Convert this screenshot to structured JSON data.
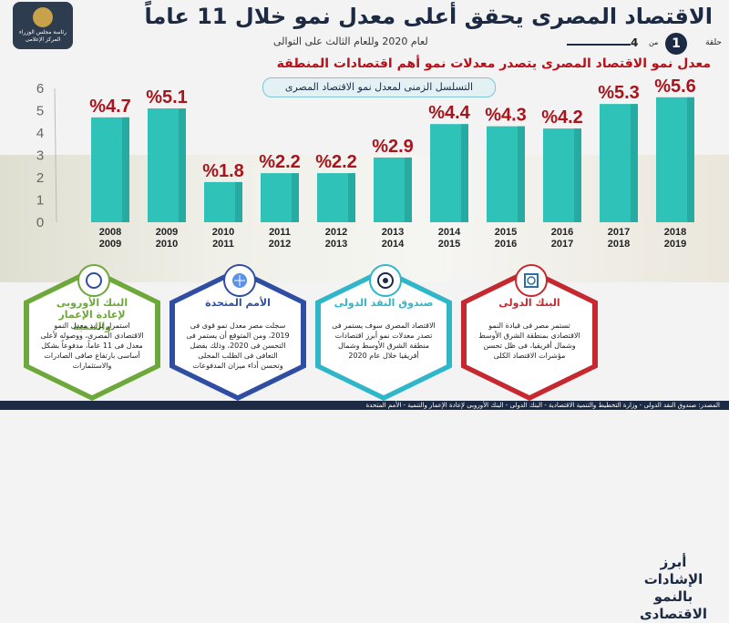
{
  "header": {
    "title": "الاقتصاد المصرى يحقق أعلى معدل نمو خلال 11 عاماً",
    "subtitle": "لعام 2020 وللعام الثالث على التوالى",
    "logo_text": "رئاسة مجلس الوزراء المركز الإعلامى",
    "page_label": "حلقة",
    "page_current": "1",
    "page_of": "من",
    "page_total": "4"
  },
  "headline": "معدل نمو الاقتصاد المصرى يتصدر معدلات نمو أهم اقتصادات المنطقة",
  "series_title": "التسلسل الزمنى لمعدل نمو الاقتصاد المصرى",
  "chart_data": {
    "type": "bar",
    "categories": [
      "2008/2009",
      "2009/2010",
      "2010/2011",
      "2011/2012",
      "2012/2013",
      "2013/2014",
      "2014/2015",
      "2015/2016",
      "2016/2017",
      "2017/2018",
      "2018/2019"
    ],
    "category_lines": [
      [
        "2008",
        "2009"
      ],
      [
        "2009",
        "2010"
      ],
      [
        "2010",
        "2011"
      ],
      [
        "2011",
        "2012"
      ],
      [
        "2012",
        "2013"
      ],
      [
        "2013",
        "2014"
      ],
      [
        "2014",
        "2015"
      ],
      [
        "2015",
        "2016"
      ],
      [
        "2016",
        "2017"
      ],
      [
        "2017",
        "2018"
      ],
      [
        "2018",
        "2019"
      ]
    ],
    "values": [
      4.7,
      5.1,
      1.8,
      2.2,
      2.2,
      2.9,
      4.4,
      4.3,
      4.2,
      5.3,
      5.6
    ],
    "labels": [
      "%4.7",
      "%5.1",
      "%1.8",
      "%2.2",
      "%2.2",
      "%2.9",
      "%4.4",
      "%4.3",
      "%4.2",
      "%5.3",
      "%5.6"
    ],
    "yticks": [
      "0",
      "1",
      "2",
      "3",
      "4",
      "5",
      "6"
    ],
    "ylim": [
      0,
      6
    ],
    "grid": false,
    "bar_color": "#2fc2b8",
    "label_color": "#a8141c"
  },
  "side_title": "أبرز الإشادات بالنمو الاقتصادى",
  "cards": [
    {
      "org": "البنك الأوروبى لإعادة الإعمار والتنمية",
      "color": "#6da83a",
      "icon": "ebrd-logo",
      "body": "استمرار تزايد معدل النمو الاقتصادى المصرى، ووصوله لأعلى معدل فى 11 عاماً، مدفوعاً بشكل أساسى بارتفاع صافى الصادرات والاستثمارات"
    },
    {
      "org": "الأمم المتحدة",
      "color": "#2f4ea3",
      "icon": "un-logo",
      "body": "سجلت مصر معدل نمو قوى فى 2019، ومن المتوقع أن يستمر فى التحسن فى 2020، وذلك بفضل التعافى فى الطلب المحلى وتحسن أداء ميزان المدفوعات"
    },
    {
      "org": "صندوق النقد الدولى",
      "color": "#2fb7c9",
      "icon": "imf-logo",
      "body": "الاقتصاد المصرى سوف يستمر فى تصدر معدلات نمو أبرز اقتصادات منطقة الشرق الأوسط وشمال أفريقيا خلال عام 2020"
    },
    {
      "org": "البنك الدولى",
      "color": "#c5282f",
      "icon": "world-bank-logo",
      "body": "تستمر مصر فى قيادة النمو الاقتصادى بمنطقة الشرق الأوسط وشمال أفريقيا، فى ظل تحسن مؤشرات الاقتصاد الكلى"
    }
  ],
  "footer": "المصدر: صندوق النقد الدولى - وزارة التخطيط والتنمية الاقتصادية - البنك الدولى - البنك الأوروبى لإعادة الإعمار والتنمية - الأمم المتحدة"
}
